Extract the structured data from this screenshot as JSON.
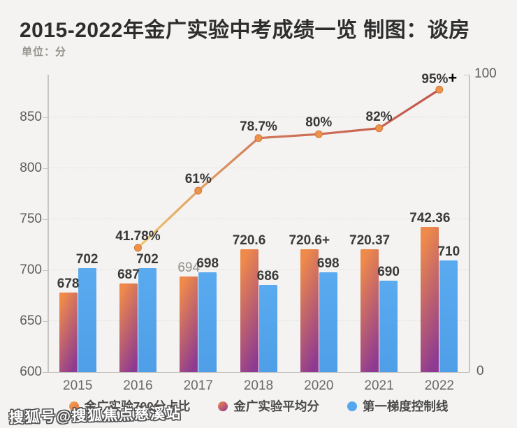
{
  "title": "2015-2022年金广实验中考成绩一览 制图：谈房",
  "subtitle": "单位：分",
  "watermark": "搜狐号@搜狐焦点慈溪站",
  "legend": [
    {
      "label": "金广实验700分占比",
      "icon": "orange-dot-icon"
    },
    {
      "label": "金广实验平均分",
      "icon": "gradient-dot-icon"
    },
    {
      "label": "第一梯度控制线",
      "icon": "blue-dot-icon"
    }
  ],
  "colors": {
    "background": "#f4f3f1",
    "bar_avg_gradient": [
      "#ef8a4a",
      "#8d3a92"
    ],
    "bar_control": "#57a7ee",
    "line_gradient": [
      "#efc86f",
      "#d0765a",
      "#c2544c"
    ],
    "point_fill": "#ee9449",
    "point_stroke": "#d2763c",
    "axis": "#c7c5c1",
    "grid": "#e2e0dc",
    "label_dark": "#3a3a3a",
    "label_muted": "#908e8b"
  },
  "chart_data": {
    "type": "combo-bar-line",
    "categories": [
      "2015",
      "2016",
      "2017",
      "2018",
      "2020",
      "2021",
      "2022"
    ],
    "series": [
      {
        "name": "金广实验平均分",
        "type": "bar",
        "axis": "left",
        "values": [
          678,
          687,
          694,
          720.6,
          720.6,
          720.37,
          742.36
        ],
        "labels": [
          "678",
          "687",
          "694",
          "720.6",
          "720.6+",
          "720.37",
          "742.36"
        ],
        "muted": [
          false,
          false,
          true,
          false,
          false,
          false,
          false
        ]
      },
      {
        "name": "第一梯度控制线",
        "type": "bar",
        "axis": "left",
        "values": [
          702,
          702,
          698,
          686,
          698,
          690,
          710
        ],
        "labels": [
          "702",
          "702",
          "698",
          "686",
          "698",
          "690",
          "710"
        ]
      },
      {
        "name": "金广实验700分占比",
        "type": "line",
        "axis": "right",
        "values": [
          null,
          41.78,
          61,
          78.7,
          80,
          82,
          95
        ],
        "labels": [
          null,
          "41.78%",
          "61%",
          "78.7%",
          "80%",
          "82%",
          "95%+"
        ]
      }
    ],
    "left_axis": {
      "min": 600,
      "max": 892,
      "ticks": [
        600,
        650,
        700,
        750,
        800,
        850
      ],
      "label": "分"
    },
    "right_axis": {
      "min": 0,
      "max": 100,
      "ticks": [
        0,
        100
      ]
    },
    "grid": "horizontal dashed at 650/700/750/800/850",
    "legend_position": "bottom-center",
    "note": "2019 not present between 2018 and 2020"
  }
}
